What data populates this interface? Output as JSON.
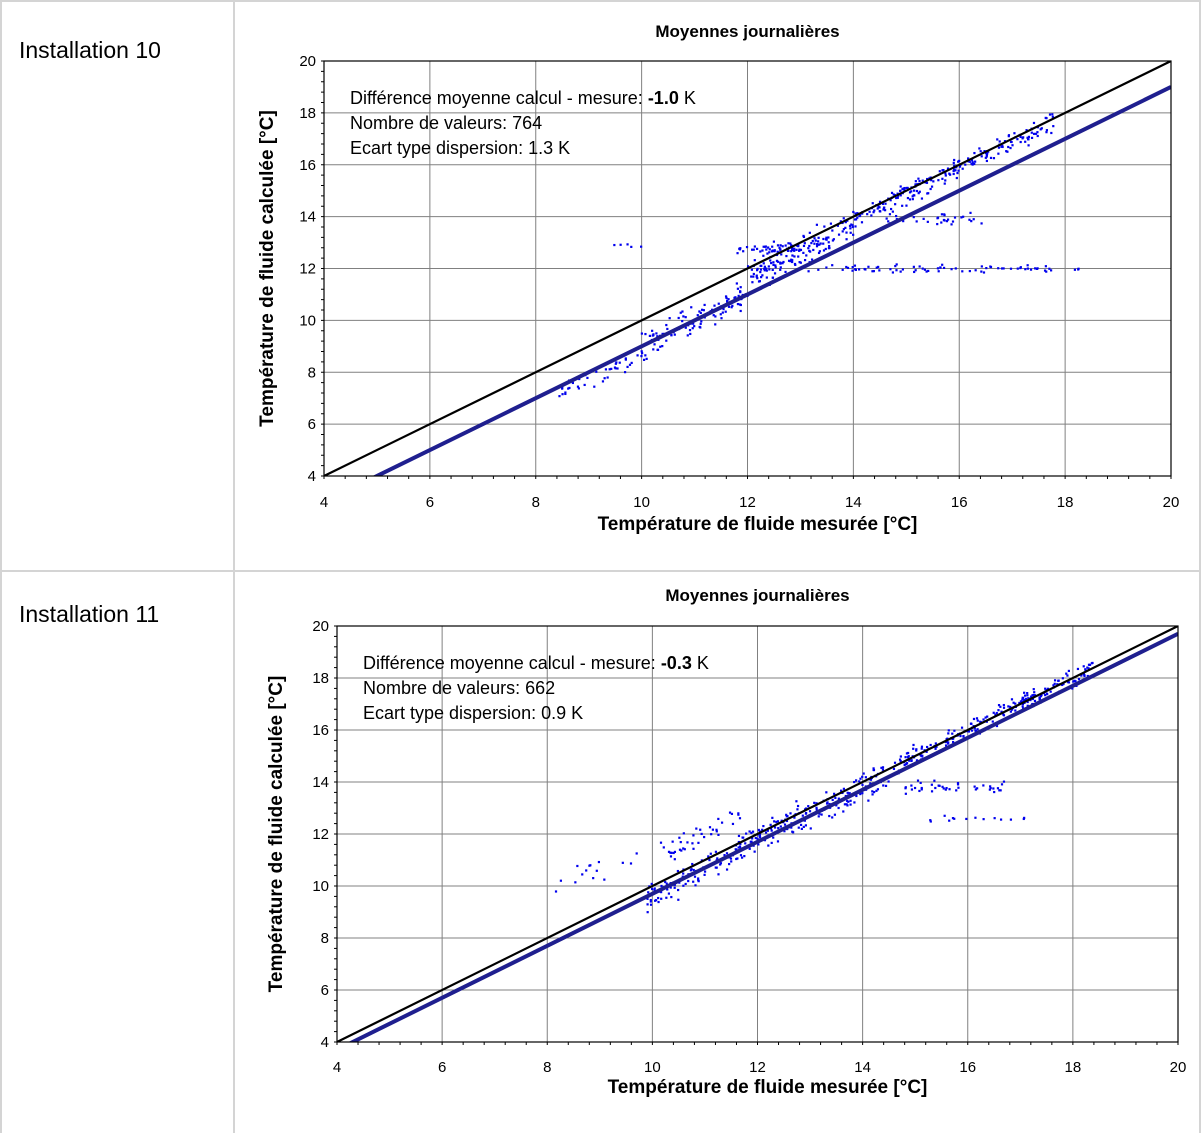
{
  "rows": [
    {
      "label": "Installation 10"
    },
    {
      "label": "Installation 11"
    }
  ],
  "chart_data": [
    {
      "type": "scatter",
      "title": "Moyennes journalières",
      "xlabel": "Température de fluide mesurée [°C]",
      "ylabel": "Température de fluide calculée [°C]",
      "xlim": [
        4,
        20
      ],
      "ylim": [
        4,
        20
      ],
      "xticks": [
        "4",
        "6",
        "8",
        "10",
        "12",
        "14",
        "16",
        "18",
        "20"
      ],
      "yticks": [
        "4",
        "6",
        "8",
        "10",
        "12",
        "14",
        "16",
        "18",
        "20"
      ],
      "grid": true,
      "annotations": {
        "line1_prefix": "Différence moyenne calcul - mesure: ",
        "line1_value": "-1.0",
        "line1_unit": " K",
        "line2": "Nombre de valeurs: 764",
        "line3": "Ecart type dispersion: 1.3 K"
      },
      "reference_lines": [
        {
          "offset": 0,
          "color": "#000000"
        },
        {
          "offset": -1.0,
          "color": "#1f1f8f"
        }
      ],
      "point_color": "#0000ee",
      "point_count": 764,
      "clusters": [
        {
          "x": [
            8.4,
            10.0
          ],
          "offset": -1.3,
          "spread": 0.3,
          "n": 40
        },
        {
          "x": [
            10.0,
            12.0
          ],
          "offset": -1.0,
          "spread": 0.35,
          "n": 110
        },
        {
          "x": [
            12.0,
            14.0
          ],
          "offset": -0.3,
          "spread": 0.35,
          "n": 150
        },
        {
          "x": [
            14.0,
            17.8
          ],
          "offset": -0.1,
          "spread": 0.25,
          "n": 210
        },
        {
          "x": [
            11.8,
            13.0
          ],
          "y": 12.8,
          "spread": 0.15,
          "n": 45
        },
        {
          "x": [
            14.6,
            16.6
          ],
          "y": 13.9,
          "spread": 0.15,
          "n": 35
        },
        {
          "x": [
            13.0,
            18.3
          ],
          "y": 12.0,
          "spread": 0.08,
          "n": 75
        },
        {
          "x": [
            8.9,
            10.2
          ],
          "y": 12.9,
          "spread": 0.08,
          "n": 5
        }
      ]
    },
    {
      "type": "scatter",
      "title": "Moyennes journalières",
      "xlabel": "Température de fluide mesurée [°C]",
      "ylabel": "Température de fluide calculée [°C]",
      "xlim": [
        4,
        20
      ],
      "ylim": [
        4,
        20
      ],
      "xticks": [
        "4",
        "6",
        "8",
        "10",
        "12",
        "14",
        "16",
        "18",
        "20"
      ],
      "yticks": [
        "4",
        "6",
        "8",
        "10",
        "12",
        "14",
        "16",
        "18",
        "20"
      ],
      "grid": true,
      "annotations": {
        "line1_prefix": "Différence moyenne calcul - mesure: ",
        "line1_value": "-0.3",
        "line1_unit": " K",
        "line2": "Nombre de valeurs: 662",
        "line3": "Ecart type dispersion: 0.9 K"
      },
      "reference_lines": [
        {
          "offset": 0,
          "color": "#000000"
        },
        {
          "offset": -0.3,
          "color": "#1f1f8f"
        }
      ],
      "point_color": "#0000ee",
      "point_count": 662,
      "clusters": [
        {
          "x": [
            8.1,
            9.8
          ],
          "offset": 1.6,
          "spread": 0.4,
          "n": 15
        },
        {
          "x": [
            9.9,
            11.5
          ],
          "offset": -0.4,
          "spread": 0.35,
          "n": 90
        },
        {
          "x": [
            10.0,
            11.8
          ],
          "offset": 1.0,
          "spread": 0.3,
          "n": 40
        },
        {
          "x": [
            11.5,
            14.5
          ],
          "offset": -0.2,
          "spread": 0.35,
          "n": 200
        },
        {
          "x": [
            14.5,
            18.4
          ],
          "offset": 0.0,
          "spread": 0.22,
          "n": 220
        },
        {
          "x": [
            14.8,
            16.7
          ],
          "y": 13.8,
          "spread": 0.15,
          "n": 40
        },
        {
          "x": [
            15.0,
            17.3
          ],
          "y": 12.6,
          "spread": 0.08,
          "n": 14
        }
      ]
    }
  ]
}
